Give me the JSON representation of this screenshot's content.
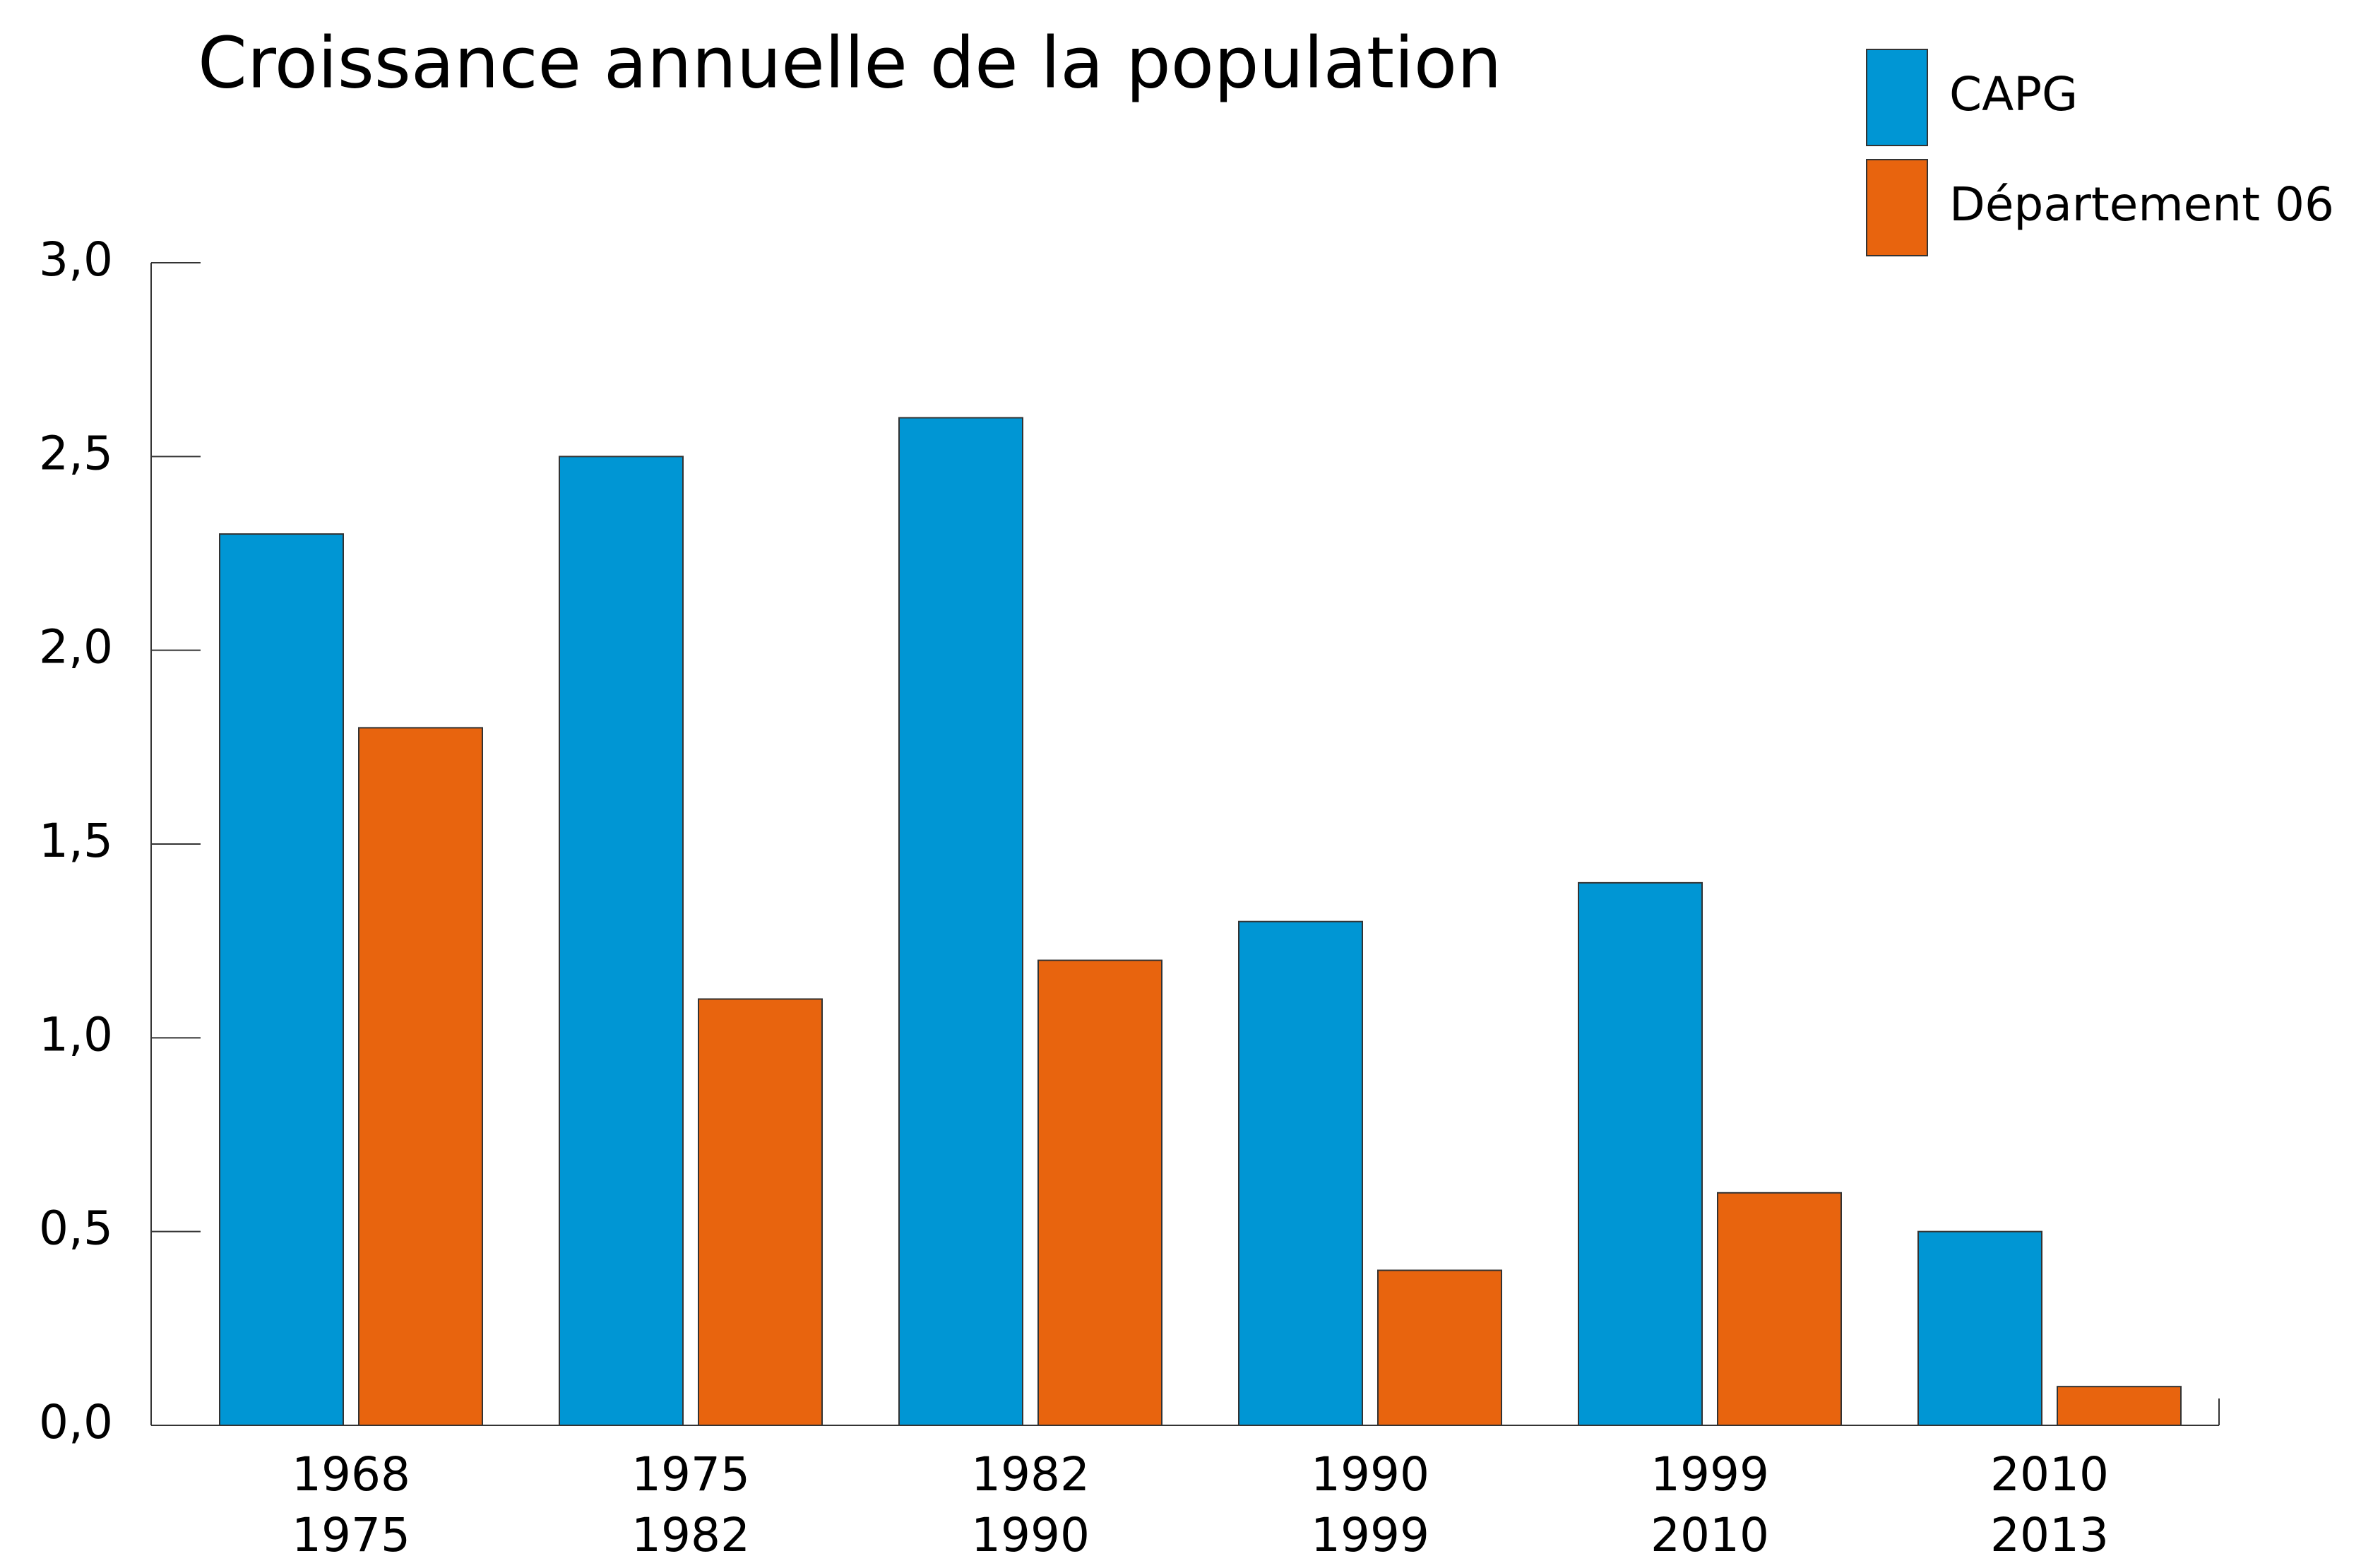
{
  "chart_data": {
    "type": "bar",
    "title": "Croissance annuelle de la population",
    "categories": [
      [
        "1968",
        "1975"
      ],
      [
        "1975",
        "1982"
      ],
      [
        "1982",
        "1990"
      ],
      [
        "1990",
        "1999"
      ],
      [
        "1999",
        "2010"
      ],
      [
        "2010",
        "2013"
      ]
    ],
    "series": [
      {
        "name": "CAPG",
        "color": "#0096d4",
        "values": [
          2.3,
          2.5,
          2.6,
          1.3,
          1.4,
          0.5
        ]
      },
      {
        "name": "Département 06",
        "color": "#e8640e",
        "values": [
          1.8,
          1.1,
          1.2,
          0.4,
          0.6,
          0.1
        ]
      }
    ],
    "ylim": [
      0,
      3
    ],
    "yticks": [
      {
        "value": 0,
        "label": "0,0"
      },
      {
        "value": 0.5,
        "label": "0,5"
      },
      {
        "value": 1,
        "label": "1,0"
      },
      {
        "value": 1.5,
        "label": "1,5"
      },
      {
        "value": 2,
        "label": "2,0"
      },
      {
        "value": 2.5,
        "label": "2,5"
      },
      {
        "value": 3,
        "label": "3,0"
      }
    ],
    "legend": "top-right"
  }
}
